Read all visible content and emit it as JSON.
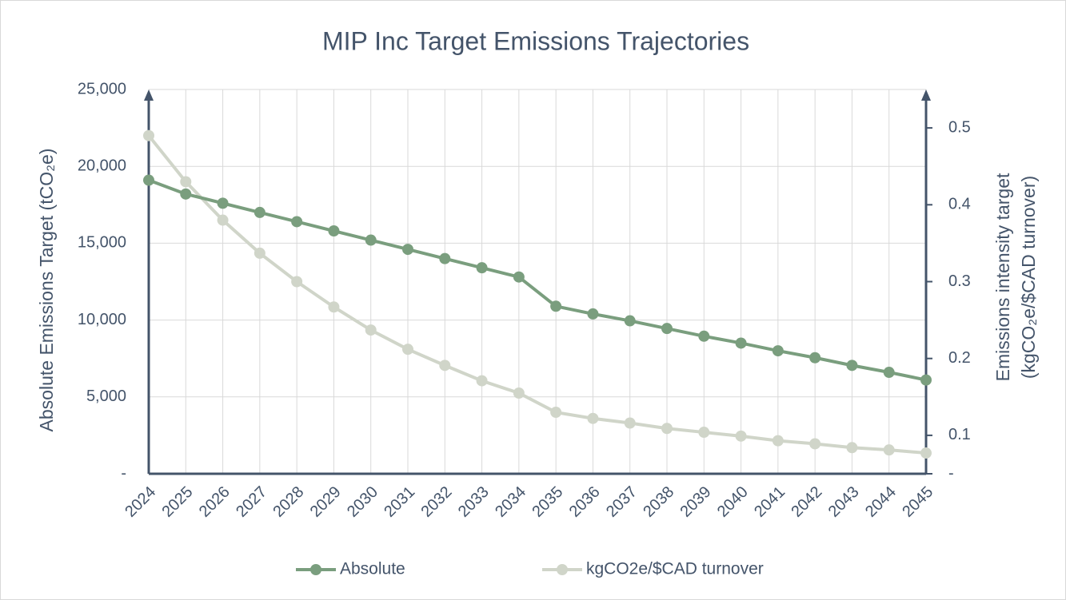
{
  "chart_data": {
    "type": "line",
    "title": "MIP Inc Target Emissions Trajectories",
    "y_label": "Absolute Emissions Target  (tCO₂e)",
    "y2_label": [
      "Emissions intensity target",
      "(kgCO₂e/$CAD turnover)"
    ],
    "categories": [
      "2024",
      "2025",
      "2026",
      "2027",
      "2028",
      "2029",
      "2030",
      "2031",
      "2032",
      "2033",
      "2034",
      "2035",
      "2036",
      "2037",
      "2038",
      "2039",
      "2040",
      "2041",
      "2042",
      "2043",
      "2044",
      "2045"
    ],
    "series": [
      {
        "name": "Absolute",
        "color": "#7a9e7e",
        "values": [
          19100,
          18200,
          17600,
          17000,
          16400,
          15800,
          15200,
          14600,
          14000,
          13400,
          12800,
          10900,
          10400,
          9950,
          9450,
          8950,
          8500,
          8000,
          7550,
          7050,
          6600,
          6100
        ]
      },
      {
        "name": "kgCO2e/$CAD turnover",
        "color": "#d0d5c9",
        "axis": "y2",
        "values": [
          0.49,
          0.43,
          0.38,
          0.337,
          0.3,
          0.267,
          0.237,
          0.212,
          0.191,
          0.171,
          0.155,
          0.13,
          0.122,
          0.116,
          0.109,
          0.104,
          0.099,
          0.093,
          0.089,
          0.084,
          0.081,
          0.077
        ]
      }
    ],
    "ylim": [
      0,
      25000
    ],
    "yticks": [
      {
        "value": 0,
        "label": "-"
      },
      {
        "value": 5000,
        "label": "5,000"
      },
      {
        "value": 10000,
        "label": "10,000"
      },
      {
        "value": 15000,
        "label": "15,000"
      },
      {
        "value": 20000,
        "label": "20,000"
      },
      {
        "value": 25000,
        "label": "25,000"
      }
    ],
    "y2lim": [
      0.05,
      0.55
    ],
    "y2ticks": [
      {
        "value": 0.05,
        "label": "-"
      },
      0.1,
      0.2,
      0.3,
      0.4,
      0.5
    ],
    "grid": true,
    "legend": "bottom"
  }
}
